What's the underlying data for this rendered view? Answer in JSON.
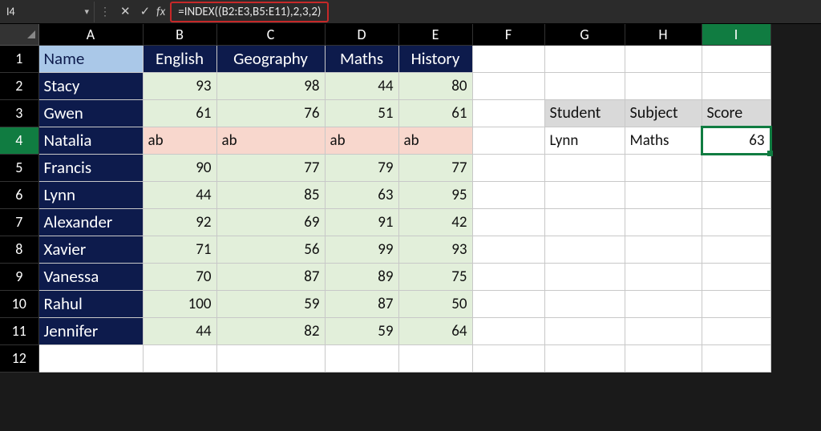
{
  "formula_bar": {
    "cell_ref": "I4",
    "formula": "=INDEX((B2:E3,B5:E11),2,3,2)",
    "highlight_border_color": "#c62828"
  },
  "columns": [
    "A",
    "B",
    "C",
    "D",
    "E",
    "F",
    "G",
    "H",
    "I"
  ],
  "active_column": "I",
  "active_row": 4,
  "row_count": 12,
  "table": {
    "header_name": "Name",
    "subjects": [
      "English",
      "Geography",
      "Maths",
      "History"
    ],
    "colors": {
      "header_name_bg": "#aac8e8",
      "header_subject_bg": "#0d1b4c",
      "header_subject_fg": "#ffffff",
      "name_col_bg": "#0d1b4c",
      "name_col_fg": "#ffffff",
      "score_bg": "#e2efda",
      "row4_bg": "#f8d7cd"
    },
    "students": [
      {
        "name": "Stacy",
        "scores": [
          93,
          98,
          44,
          80
        ]
      },
      {
        "name": "Gwen",
        "scores": [
          61,
          76,
          51,
          61
        ]
      },
      {
        "name": "Natalia",
        "scores": [
          "ab",
          "ab",
          "ab",
          "ab"
        ],
        "absent": true
      },
      {
        "name": "Francis",
        "scores": [
          90,
          77,
          79,
          77
        ]
      },
      {
        "name": "Lynn",
        "scores": [
          44,
          85,
          63,
          95
        ]
      },
      {
        "name": "Alexander",
        "scores": [
          92,
          69,
          91,
          42
        ]
      },
      {
        "name": "Xavier",
        "scores": [
          71,
          56,
          99,
          93
        ]
      },
      {
        "name": "Vanessa",
        "scores": [
          70,
          87,
          89,
          75
        ]
      },
      {
        "name": "Rahul",
        "scores": [
          100,
          59,
          87,
          50
        ]
      },
      {
        "name": "Jennifer",
        "scores": [
          44,
          82,
          59,
          64
        ]
      }
    ]
  },
  "lookup_box": {
    "headers": [
      "Student",
      "Subject",
      "Score"
    ],
    "student": "Lynn",
    "subject": "Maths",
    "score": 63,
    "header_bg": "#d9d9d9"
  }
}
